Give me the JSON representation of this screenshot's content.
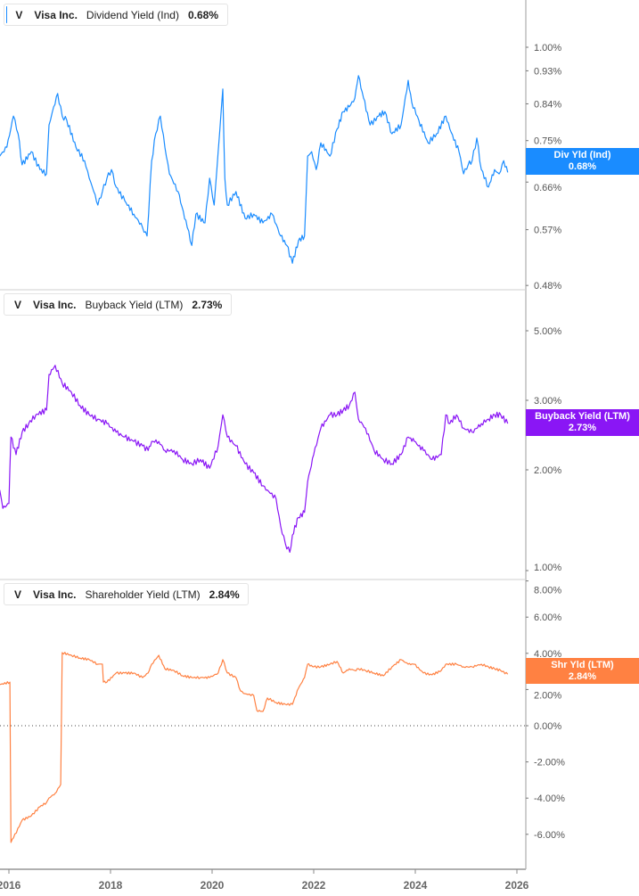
{
  "colors": {
    "dividend": "#1a8cff",
    "buyback": "#8a16f5",
    "shareholder": "#ff8142",
    "axis": "#9e9e9e",
    "tick_text": "#555555"
  },
  "chart_data": [
    {
      "type": "line",
      "ticker": "V",
      "company": "Visa Inc.",
      "metric": "Dividend Yield (Ind)",
      "current": "0.68%",
      "tag_label": "Div Yld (Ind)",
      "tag_value": "0.68%",
      "scale": "log",
      "ylim": [
        0.47,
        1.15
      ],
      "yticks": [
        "1.00%",
        "0.93%",
        "0.84%",
        "0.75%",
        "0.66%",
        "0.57%",
        "0.48%"
      ],
      "ytick_values": [
        1.0,
        0.93,
        0.84,
        0.75,
        0.66,
        0.57,
        0.48
      ],
      "x": [
        2015.82,
        2015.96,
        2016.09,
        2016.18,
        2016.26,
        2016.44,
        2016.61,
        2016.74,
        2016.79,
        2016.88,
        2016.96,
        2017.05,
        2017.14,
        2017.32,
        2017.49,
        2017.58,
        2017.67,
        2017.75,
        2017.84,
        2017.93,
        2018.02,
        2018.11,
        2018.28,
        2018.46,
        2018.63,
        2018.72,
        2018.81,
        2018.89,
        2018.98,
        2019.07,
        2019.16,
        2019.33,
        2019.51,
        2019.6,
        2019.68,
        2019.86,
        2019.95,
        2020.04,
        2020.12,
        2020.21,
        2020.25,
        2020.3,
        2020.47,
        2020.65,
        2020.82,
        2021.0,
        2021.18,
        2021.35,
        2021.47,
        2021.58,
        2021.7,
        2021.82,
        2021.88,
        2021.96,
        2022.05,
        2022.14,
        2022.32,
        2022.46,
        2022.58,
        2022.7,
        2022.81,
        2022.88,
        2022.98,
        2023.11,
        2023.28,
        2023.4,
        2023.54,
        2023.72,
        2023.86,
        2023.93,
        2024.07,
        2024.25,
        2024.42,
        2024.6,
        2024.68,
        2024.86,
        2024.95,
        2025.04,
        2025.12,
        2025.21,
        2025.3,
        2025.44,
        2025.56,
        2025.65,
        2025.74,
        2025.82
      ],
      "values": [
        0.715,
        0.735,
        0.809,
        0.766,
        0.696,
        0.725,
        0.686,
        0.677,
        0.787,
        0.832,
        0.867,
        0.809,
        0.798,
        0.735,
        0.705,
        0.668,
        0.641,
        0.615,
        0.641,
        0.668,
        0.686,
        0.65,
        0.623,
        0.598,
        0.574,
        0.559,
        0.705,
        0.766,
        0.809,
        0.735,
        0.677,
        0.641,
        0.574,
        0.543,
        0.598,
        0.582,
        0.668,
        0.615,
        0.725,
        0.879,
        0.668,
        0.615,
        0.641,
        0.59,
        0.598,
        0.582,
        0.598,
        0.559,
        0.543,
        0.514,
        0.551,
        0.559,
        0.715,
        0.725,
        0.686,
        0.745,
        0.715,
        0.777,
        0.82,
        0.832,
        0.855,
        0.916,
        0.855,
        0.787,
        0.809,
        0.82,
        0.766,
        0.787,
        0.903,
        0.844,
        0.798,
        0.745,
        0.766,
        0.809,
        0.777,
        0.725,
        0.677,
        0.696,
        0.705,
        0.756,
        0.686,
        0.65,
        0.686,
        0.677,
        0.705,
        0.68
      ]
    },
    {
      "type": "line",
      "ticker": "V",
      "company": "Visa Inc.",
      "metric": "Buyback Yield (LTM)",
      "current": "2.73%",
      "tag_label": "Buyback Yield (LTM)",
      "tag_value": "2.73%",
      "scale": "log",
      "ylim": [
        0.99,
        6.9
      ],
      "yticks": [
        "5.00%",
        "3.00%",
        "2.00%",
        "1.00%"
      ],
      "ytick_values": [
        5,
        3,
        2,
        1
      ],
      "x": [
        2015.82,
        2015.88,
        2016.0,
        2016.04,
        2016.14,
        2016.26,
        2016.39,
        2016.53,
        2016.74,
        2016.79,
        2016.91,
        2017.05,
        2017.23,
        2017.4,
        2017.58,
        2017.75,
        2017.93,
        2018.11,
        2018.28,
        2018.46,
        2018.63,
        2018.74,
        2018.81,
        2018.95,
        2019.07,
        2019.25,
        2019.42,
        2019.6,
        2019.77,
        2019.95,
        2020.12,
        2020.21,
        2020.3,
        2020.47,
        2020.65,
        2020.82,
        2021.0,
        2021.09,
        2021.26,
        2021.35,
        2021.44,
        2021.53,
        2021.58,
        2021.7,
        2021.82,
        2021.88,
        2022.0,
        2022.14,
        2022.32,
        2022.46,
        2022.58,
        2022.7,
        2022.81,
        2022.88,
        2023.02,
        2023.19,
        2023.37,
        2023.54,
        2023.72,
        2023.86,
        2023.98,
        2024.16,
        2024.33,
        2024.51,
        2024.6,
        2024.68,
        2024.81,
        2024.95,
        2025.12,
        2025.3,
        2025.44,
        2025.56,
        2025.68,
        2025.82
      ],
      "values": [
        1.77,
        1.57,
        1.62,
        2.5,
        2.23,
        2.58,
        2.73,
        2.89,
        2.98,
        3.76,
        3.99,
        3.55,
        3.35,
        3.07,
        2.89,
        2.81,
        2.73,
        2.58,
        2.5,
        2.43,
        2.36,
        2.29,
        2.43,
        2.43,
        2.29,
        2.29,
        2.16,
        2.1,
        2.16,
        2.04,
        2.36,
        2.89,
        2.5,
        2.36,
        2.1,
        1.98,
        1.82,
        1.77,
        1.67,
        1.4,
        1.25,
        1.18,
        1.32,
        1.48,
        1.53,
        1.87,
        2.23,
        2.65,
        2.89,
        2.89,
        2.98,
        3.07,
        3.35,
        2.81,
        2.65,
        2.29,
        2.16,
        2.1,
        2.23,
        2.5,
        2.43,
        2.29,
        2.16,
        2.23,
        2.89,
        2.73,
        2.89,
        2.65,
        2.58,
        2.73,
        2.81,
        2.89,
        2.89,
        2.73
      ]
    },
    {
      "type": "line",
      "ticker": "V",
      "company": "Visa Inc.",
      "metric": "Shareholder Yield (LTM)",
      "current": "2.84%",
      "tag_label": "Shr Yld (LTM)",
      "tag_value": "2.84%",
      "scale": "linear",
      "ylim": [
        -8,
        8.1
      ],
      "yticks": [
        "8.00%",
        "6.00%",
        "4.00%",
        "2.00%",
        "0.00%",
        "-2.00%",
        "-4.00%",
        "-6.00%"
      ],
      "ytick_values": [
        8,
        6,
        4,
        2,
        0,
        -2,
        -4,
        -6
      ],
      "zero_line": true,
      "x": [
        2015.82,
        2016.02,
        2016.04,
        2016.09,
        2016.26,
        2016.44,
        2016.61,
        2016.74,
        2016.79,
        2016.91,
        2017.02,
        2017.05,
        2017.23,
        2017.4,
        2017.58,
        2017.75,
        2017.84,
        2017.86,
        2017.93,
        2018.11,
        2018.28,
        2018.46,
        2018.63,
        2018.74,
        2018.81,
        2018.95,
        2019.07,
        2019.25,
        2019.42,
        2019.6,
        2019.77,
        2019.95,
        2020.12,
        2020.21,
        2020.3,
        2020.47,
        2020.56,
        2020.65,
        2020.82,
        2020.88,
        2021.0,
        2021.09,
        2021.26,
        2021.44,
        2021.58,
        2021.7,
        2021.82,
        2021.88,
        2022.0,
        2022.14,
        2022.32,
        2022.46,
        2022.58,
        2022.7,
        2022.81,
        2022.88,
        2023.02,
        2023.19,
        2023.37,
        2023.54,
        2023.72,
        2023.86,
        2023.98,
        2024.16,
        2024.33,
        2024.51,
        2024.6,
        2024.81,
        2024.95,
        2025.12,
        2025.3,
        2025.44,
        2025.56,
        2025.68,
        2025.82
      ],
      "values": [
        2.27,
        2.41,
        -6.45,
        -6.2,
        -5.22,
        -4.98,
        -4.48,
        -4.24,
        -3.99,
        -3.74,
        -3.25,
        4.04,
        3.89,
        3.74,
        3.65,
        3.4,
        3.4,
        2.41,
        2.41,
        2.91,
        2.91,
        2.91,
        2.66,
        2.91,
        3.4,
        3.89,
        3.15,
        3.05,
        2.76,
        2.66,
        2.66,
        2.66,
        2.91,
        3.65,
        2.91,
        2.66,
        1.92,
        1.77,
        1.67,
        0.84,
        0.79,
        1.53,
        1.28,
        1.18,
        1.18,
        2.07,
        2.66,
        3.4,
        3.25,
        3.25,
        3.4,
        3.55,
        2.91,
        3.15,
        3.05,
        3.15,
        3.05,
        2.91,
        2.76,
        3.25,
        3.65,
        3.4,
        3.4,
        2.91,
        2.81,
        3.05,
        3.4,
        3.4,
        3.25,
        3.25,
        3.4,
        3.25,
        3.15,
        3.05,
        2.84
      ]
    }
  ],
  "x_axis": {
    "xlim": [
      2015.82,
      2026.0
    ],
    "ticks": [
      "2016",
      "2018",
      "2020",
      "2022",
      "2024",
      "2026"
    ],
    "tick_values": [
      2016,
      2018,
      2020,
      2022,
      2024,
      2026
    ]
  }
}
